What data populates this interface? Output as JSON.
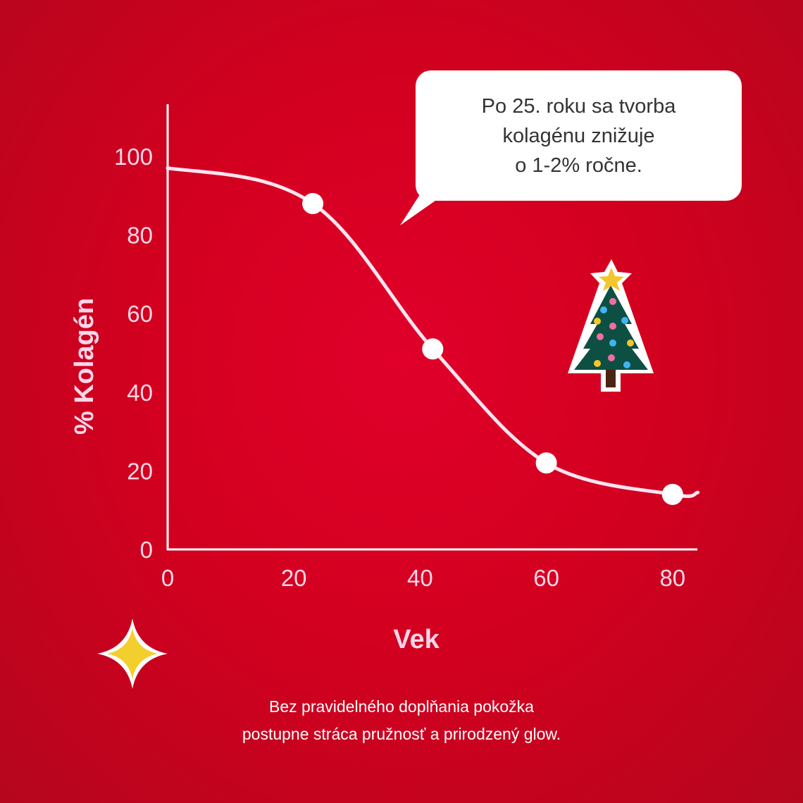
{
  "chart_data": {
    "type": "line",
    "title": "",
    "xlabel": "Vek",
    "ylabel": "% Kolagén",
    "xlim": [
      0,
      84
    ],
    "ylim": [
      0,
      110
    ],
    "xticks": [
      "0",
      "20",
      "40",
      "60",
      "80"
    ],
    "yticks": [
      "0",
      "20",
      "40",
      "60",
      "80",
      "100"
    ],
    "grid": false,
    "curve": {
      "x": [
        0,
        23,
        42,
        60,
        80,
        84
      ],
      "y": [
        97,
        88,
        51,
        22,
        14,
        14.5
      ]
    },
    "markers": {
      "x": [
        23,
        42,
        60,
        80
      ],
      "y": [
        88,
        51,
        22,
        14
      ]
    },
    "colors": {
      "line": "#ffe4f0",
      "axis": "#ffffff",
      "label": "#ffd6ea",
      "background": "#d6001f"
    }
  },
  "callout": {
    "lines": [
      "Po 25. roku sa tvorba",
      "kolagénu znižuje",
      "o 1-2% ročne."
    ]
  },
  "caption": {
    "lines": [
      "Bez pravidelného doplňania pokožka",
      "postupne stráca pružnosť a prirodzený glow."
    ]
  },
  "decorations": {
    "tree": "christmas-tree-icon",
    "sparkle": "sparkle-icon",
    "sparkle_color": "#f2cf2c"
  }
}
